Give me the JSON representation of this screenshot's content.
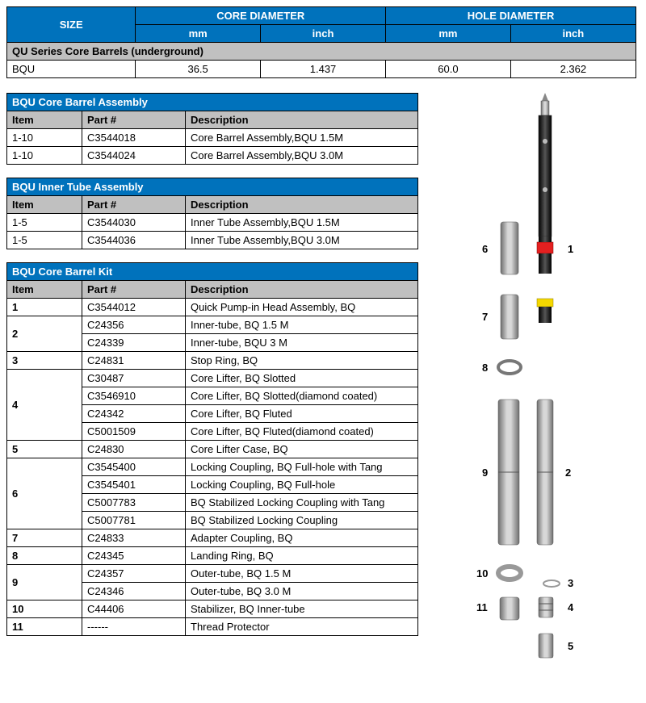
{
  "sizeTable": {
    "headers": {
      "size": "SIZE",
      "core": "CORE DIAMETER",
      "hole": "HOLE DIAMETER",
      "mm": "mm",
      "inch": "inch"
    },
    "sectionTitle": "QU Series Core Barrels (underground)",
    "row": {
      "name": "BQU",
      "core_mm": "36.5",
      "core_in": "1.437",
      "hole_mm": "60.0",
      "hole_in": "2.362"
    },
    "colors": {
      "blue": "#0072bc",
      "grey": "#c0c0c0",
      "border": "#000000"
    }
  },
  "partsTables": [
    {
      "title": "BQU Core Barrel Assembly",
      "cols": [
        "Item",
        "Part #",
        "Description"
      ],
      "rows": [
        [
          "1-10",
          "C3544018",
          "Core Barrel Assembly,BQU 1.5M"
        ],
        [
          "1-10",
          "C3544024",
          "Core Barrel Assembly,BQU 3.0M"
        ]
      ]
    },
    {
      "title": "BQU Inner Tube Assembly",
      "cols": [
        "Item",
        "Part #",
        "Description"
      ],
      "rows": [
        [
          "1-5",
          "C3544030",
          "Inner Tube Assembly,BQU 1.5M"
        ],
        [
          "1-5",
          "C3544036",
          "Inner Tube Assembly,BQU 3.0M"
        ]
      ]
    },
    {
      "title": "BQU Core Barrel Kit",
      "cols": [
        "Item",
        "Part #",
        "Description"
      ],
      "rowsGrouped": [
        {
          "item": "1",
          "parts": [
            [
              "C3544012",
              "Quick Pump-in Head Assembly, BQ"
            ]
          ]
        },
        {
          "item": "2",
          "parts": [
            [
              "C24356",
              "Inner-tube, BQ 1.5 M"
            ],
            [
              "C24339",
              "Inner-tube, BQU 3 M"
            ]
          ]
        },
        {
          "item": "3",
          "parts": [
            [
              "C24831",
              "Stop Ring, BQ"
            ]
          ]
        },
        {
          "item": "4",
          "parts": [
            [
              "C30487",
              "Core Lifter, BQ Slotted"
            ],
            [
              "C3546910",
              "Core Lifter, BQ Slotted(diamond coated)"
            ],
            [
              "C24342",
              "Core Lifter, BQ Fluted"
            ],
            [
              "C5001509",
              "Core Lifter, BQ Fluted(diamond coated)"
            ]
          ]
        },
        {
          "item": "5",
          "parts": [
            [
              "C24830",
              "Core Lifter Case, BQ"
            ]
          ]
        },
        {
          "item": "6",
          "parts": [
            [
              "C3545400",
              "Locking Coupling, BQ Full-hole with Tang"
            ],
            [
              "C3545401",
              "Locking Coupling, BQ Full-hole"
            ],
            [
              "C5007783",
              "BQ Stabilized Locking Coupling with Tang"
            ],
            [
              "C5007781",
              "BQ Stabilized Locking Coupling"
            ]
          ]
        },
        {
          "item": "7",
          "parts": [
            [
              "C24833",
              "Adapter Coupling, BQ"
            ]
          ]
        },
        {
          "item": "8",
          "parts": [
            [
              "C24345",
              "Landing Ring, BQ"
            ]
          ]
        },
        {
          "item": "9",
          "parts": [
            [
              "C24357",
              "Outer-tube, BQ 1.5 M"
            ],
            [
              "C24346",
              "Outer-tube, BQ 3.0 M"
            ]
          ]
        },
        {
          "item": "10",
          "parts": [
            [
              "C44406",
              "Stabilizer, BQ Inner-tube"
            ]
          ]
        },
        {
          "item": "11",
          "parts": [
            [
              "------",
              "Thread Protector"
            ]
          ]
        }
      ]
    }
  ],
  "diagram": {
    "labels": [
      "1",
      "2",
      "3",
      "4",
      "5",
      "6",
      "7",
      "8",
      "9",
      "10",
      "11"
    ],
    "colors": {
      "tube_grey": "#9d9d9d",
      "tube_dark": "#333333",
      "red": "#e42020",
      "yellow": "#f5d800",
      "outline": "#606060"
    }
  }
}
